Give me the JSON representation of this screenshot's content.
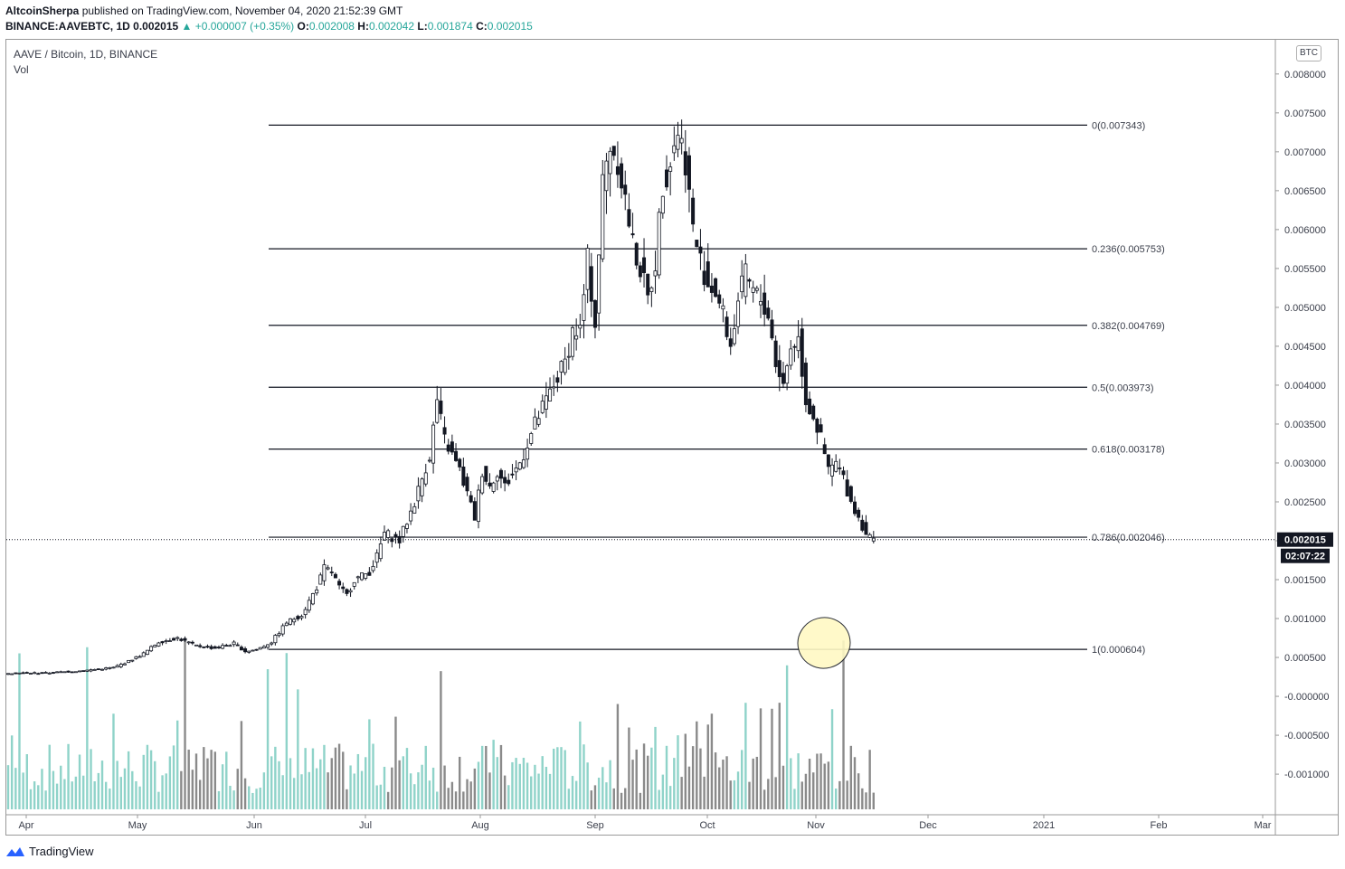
{
  "header": {
    "author": "AltcoinSherpa",
    "published": "published on TradingView.com, November 04, 2020 21:52:39 GMT",
    "symbol": "BINANCE:AAVEBTC, 1D",
    "last": "0.002015",
    "change": "▲ +0.000007 (+0.35%)",
    "ohlc": {
      "O": "0.002008",
      "H": "0.002042",
      "L": "0.001874",
      "C": "0.002015"
    }
  },
  "legend": {
    "series": "AAVE / Bitcoin, 1D, BINANCE",
    "volume": "Vol"
  },
  "currency_badge": "BTC",
  "price_label": "0.002015",
  "countdown_label": "02:07:22",
  "branding": "TradingView",
  "colors": {
    "up": "#26a69a",
    "down": "#131722",
    "vol_up": "#8fd3c9",
    "vol_down": "#8a8a8a",
    "marker": "#fff9c4"
  },
  "chart_data": {
    "type": "candlestick",
    "title": "AAVE / Bitcoin, 1D, BINANCE",
    "y_ticks": [
      "0.008000",
      "0.007500",
      "0.007000",
      "0.006500",
      "0.006000",
      "0.005500",
      "0.005000",
      "0.004500",
      "0.004000",
      "0.003500",
      "0.003000",
      "0.002500",
      "0.002000",
      "0.001500",
      "0.001000",
      "0.000500",
      "-0.000000",
      "-0.000500",
      "-0.001000"
    ],
    "y_range": [
      -0.0014,
      0.0083
    ],
    "x_labels": [
      "Apr",
      "May",
      "Jun",
      "Jul",
      "Aug",
      "Sep",
      "Oct",
      "Nov",
      "Dec",
      "2021",
      "Feb",
      "Mar"
    ],
    "fib_levels": [
      {
        "label": "0(0.007343)",
        "value": 0.007343
      },
      {
        "label": "0.236(0.005753)",
        "value": 0.005753
      },
      {
        "label": "0.382(0.004769)",
        "value": 0.004769
      },
      {
        "label": "0.5(0.003973)",
        "value": 0.003973
      },
      {
        "label": "0.618(0.003178)",
        "value": 0.003178
      },
      {
        "label": "0.786(0.002046)",
        "value": 0.002046
      },
      {
        "label": "1(0.000604)",
        "value": 0.000604
      }
    ],
    "price_path": [
      [
        0,
        0.0003
      ],
      [
        10,
        0.0003
      ],
      [
        20,
        0.00033
      ],
      [
        28,
        0.00037
      ],
      [
        32,
        0.00045
      ],
      [
        36,
        0.00055
      ],
      [
        40,
        0.0007
      ],
      [
        45,
        0.00075
      ],
      [
        50,
        0.00065
      ],
      [
        55,
        0.00062
      ],
      [
        60,
        0.00068
      ],
      [
        63,
        0.00058
      ],
      [
        66,
        0.0006
      ],
      [
        70,
        0.0007
      ],
      [
        74,
        0.00095
      ],
      [
        78,
        0.00105
      ],
      [
        82,
        0.0014
      ],
      [
        84,
        0.00165
      ],
      [
        86,
        0.0016
      ],
      [
        88,
        0.0014
      ],
      [
        90,
        0.0013
      ],
      [
        92,
        0.0015
      ],
      [
        96,
        0.0016
      ],
      [
        98,
        0.0018
      ],
      [
        100,
        0.0021
      ],
      [
        104,
        0.002
      ],
      [
        108,
        0.0025
      ],
      [
        112,
        0.0031
      ],
      [
        114,
        0.0038
      ],
      [
        116,
        0.0033
      ],
      [
        118,
        0.0031
      ],
      [
        120,
        0.0029
      ],
      [
        122,
        0.0026
      ],
      [
        124,
        0.0023
      ],
      [
        126,
        0.0029
      ],
      [
        128,
        0.0027
      ],
      [
        130,
        0.0029
      ],
      [
        132,
        0.0027
      ],
      [
        136,
        0.003
      ],
      [
        140,
        0.0035
      ],
      [
        144,
        0.0039
      ],
      [
        148,
        0.0043
      ],
      [
        150,
        0.0047
      ],
      [
        152,
        0.0047
      ],
      [
        154,
        0.0056
      ],
      [
        156,
        0.0048
      ],
      [
        158,
        0.0066
      ],
      [
        160,
        0.0071
      ],
      [
        162,
        0.0069
      ],
      [
        164,
        0.0064
      ],
      [
        166,
        0.0058
      ],
      [
        168,
        0.0055
      ],
      [
        170,
        0.0051
      ],
      [
        172,
        0.0056
      ],
      [
        174,
        0.0066
      ],
      [
        176,
        0.0069
      ],
      [
        178,
        0.0073
      ],
      [
        180,
        0.0069
      ],
      [
        182,
        0.006
      ],
      [
        184,
        0.0056
      ],
      [
        186,
        0.0053
      ],
      [
        188,
        0.0052
      ],
      [
        190,
        0.0049
      ],
      [
        192,
        0.0045
      ],
      [
        194,
        0.0051
      ],
      [
        196,
        0.0054
      ],
      [
        198,
        0.0052
      ],
      [
        200,
        0.0051
      ],
      [
        202,
        0.0049
      ],
      [
        204,
        0.0043
      ],
      [
        206,
        0.004
      ],
      [
        208,
        0.0045
      ],
      [
        210,
        0.0046
      ],
      [
        212,
        0.0038
      ],
      [
        214,
        0.0036
      ],
      [
        216,
        0.0033
      ],
      [
        218,
        0.0029
      ],
      [
        220,
        0.003
      ],
      [
        222,
        0.0028
      ],
      [
        224,
        0.0025
      ],
      [
        226,
        0.0023
      ],
      [
        228,
        0.0021
      ],
      [
        230,
        0.002
      ]
    ]
  }
}
